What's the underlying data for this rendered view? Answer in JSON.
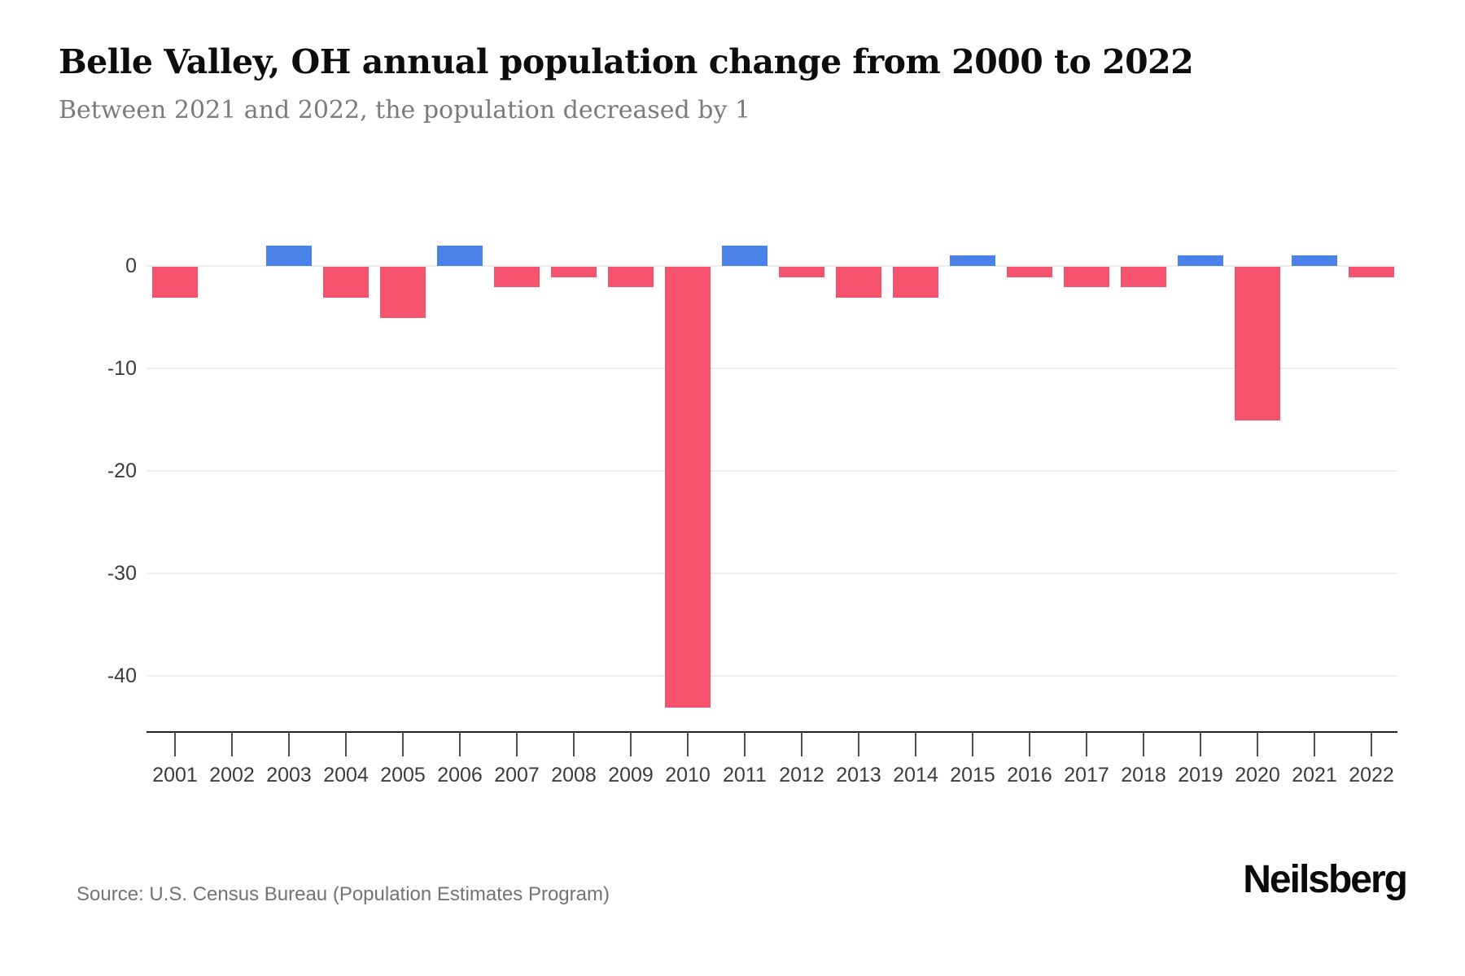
{
  "header": {
    "title": "Belle Valley, OH annual population change from 2000 to 2022",
    "subtitle": "Between 2021 and 2022, the population decreased by 1"
  },
  "footer": {
    "source": "Source: U.S. Census Bureau (Population Estimates Program)",
    "brand": "Neilsberg"
  },
  "colors": {
    "increase": "#4a82e9",
    "decrease": "#f5536e",
    "gridline": "#eeeeee",
    "axis_line": "#262626",
    "tick": "#4d4d4d",
    "tick_label": "#3c3c3c"
  },
  "chart_data": {
    "type": "bar",
    "title": "Belle Valley, OH annual population change from 2000 to 2022",
    "subtitle": "Between 2021 and 2022, the population decreased by 1",
    "xlabel": "",
    "ylabel": "",
    "categories": [
      "2001",
      "2002",
      "2003",
      "2004",
      "2005",
      "2006",
      "2007",
      "2008",
      "2009",
      "2010",
      "2011",
      "2012",
      "2013",
      "2014",
      "2015",
      "2016",
      "2017",
      "2018",
      "2019",
      "2020",
      "2021",
      "2022"
    ],
    "values": [
      -3,
      0,
      2,
      -3,
      -5,
      2,
      -2,
      -1,
      -2,
      -43,
      2,
      -1,
      -3,
      -3,
      1,
      -1,
      -2,
      -2,
      1,
      -15,
      1,
      -1
    ],
    "yticks": [
      {
        "label": "0",
        "value": 0
      },
      {
        "label": "-10",
        "value": -10
      },
      {
        "label": "-20",
        "value": -20
      },
      {
        "label": "-30",
        "value": -30
      },
      {
        "label": "-40",
        "value": -40
      }
    ],
    "ylim": [
      -45.5,
      3
    ],
    "grid": true,
    "legend_position": "none",
    "positive_color": "#4a82e9",
    "negative_color": "#f5536e"
  }
}
